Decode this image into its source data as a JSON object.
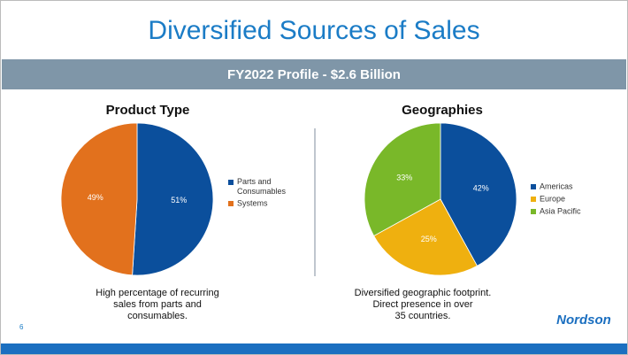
{
  "slide": {
    "title": "Diversified Sources of Sales",
    "banner": "FY2022 Profile - $2.6 Billion",
    "page_number": "6",
    "logo": "Nordson"
  },
  "chart_data": [
    {
      "type": "pie",
      "title": "Product Type",
      "categories": [
        "Parts and Consumables",
        "Systems"
      ],
      "values": [
        51,
        49
      ],
      "value_labels": [
        "51%",
        "49%"
      ],
      "colors": [
        "#0b4f9c",
        "#e2711d"
      ],
      "caption": [
        "High percentage of recurring",
        "sales from parts and",
        "consumables."
      ]
    },
    {
      "type": "pie",
      "title": "Geographies",
      "categories": [
        "Americas",
        "Europe",
        "Asia Pacific"
      ],
      "values": [
        42,
        25,
        33
      ],
      "value_labels": [
        "42%",
        "25%",
        "33%"
      ],
      "colors": [
        "#0b4f9c",
        "#efb00f",
        "#79b829"
      ],
      "caption": [
        "Diversified geographic footprint.",
        "Direct presence in over",
        "35 countries."
      ]
    }
  ]
}
